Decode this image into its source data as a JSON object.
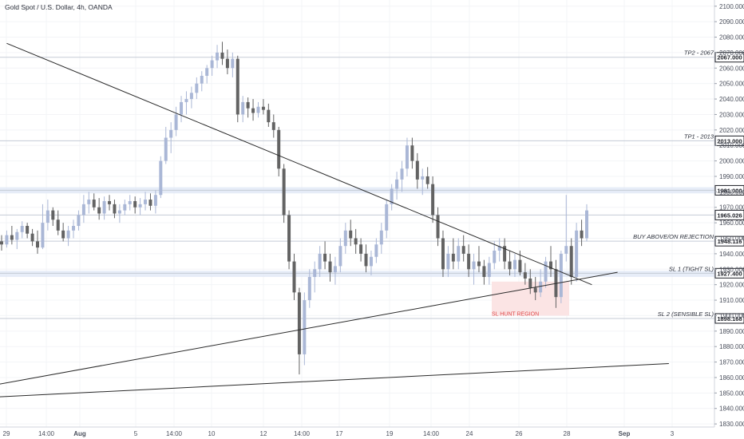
{
  "title": "Gold Spot / U.S. Dollar, 4h, OANDA",
  "colors": {
    "background": "#ffffff",
    "up_candle": "#aab7d6",
    "down_candle": "#636363",
    "trendline": "#2a2a2a",
    "level_line": "#c5cbd6",
    "zone_fill": "#dde6f5",
    "sl_zone_fill": "#fbe4e4",
    "sl_text": "#e05050",
    "badge_bg": "#ffffff",
    "badge_border": "#1e2027",
    "price_badge_bg": "#ffffff"
  },
  "chart_data": {
    "type": "candlestick",
    "title": "Gold Spot / U.S. Dollar, 4h, OANDA",
    "x_ticks": [
      "29",
      "14:00",
      "Aug",
      "5",
      "14:00",
      "10",
      "12",
      "14:00",
      "17",
      "19",
      "14:00",
      "24",
      "26",
      "28",
      "Sep",
      "3"
    ],
    "y_ticks": [
      1830,
      1840,
      1850,
      1860,
      1870,
      1880,
      1890,
      1900,
      1910,
      1920,
      1930,
      1940,
      1950,
      1960,
      1970,
      1980,
      1990,
      2000,
      2010,
      2020,
      2030,
      2040,
      2050,
      2060,
      2070,
      2080,
      2090,
      2100
    ],
    "ylim": [
      1828,
      2104
    ],
    "levels": [
      {
        "label": "TP2 - 2067",
        "price": 2067.0,
        "badge": "2067.000"
      },
      {
        "label": "TP1 - 2013",
        "price": 2013.0,
        "badge": "2013.000"
      },
      {
        "label": "",
        "price": 1981.0,
        "badge": "1981.000"
      },
      {
        "label": "",
        "price": 1965.026,
        "badge": "1965.026"
      },
      {
        "label": "BUY ABOVE/ON REJECTION",
        "price": 1948.116,
        "badge": "1948.116"
      },
      {
        "label": "SL 1 (TIGHT SL)",
        "price": 1927.4,
        "badge": "1927.400"
      },
      {
        "label": "SL 2 (SENSIBLE SL)",
        "price": 1898.168,
        "badge": "1898.168"
      }
    ],
    "zones": [
      {
        "price_from": 1979,
        "price_to": 1983
      },
      {
        "price_from": 1925,
        "price_to": 1929
      }
    ],
    "sl_zone": {
      "label": "SL HUNT REGION",
      "price_from": 1900,
      "price_to": 1922
    },
    "candles": [
      [
        1948,
        1952,
        1942,
        1946
      ],
      [
        1946,
        1955,
        1944,
        1952
      ],
      [
        1952,
        1958,
        1946,
        1949
      ],
      [
        1949,
        1956,
        1943,
        1954
      ],
      [
        1954,
        1961,
        1950,
        1958
      ],
      [
        1958,
        1960,
        1950,
        1953
      ],
      [
        1953,
        1956,
        1945,
        1948
      ],
      [
        1948,
        1955,
        1940,
        1944
      ],
      [
        1944,
        1972,
        1943,
        1960
      ],
      [
        1960,
        1975,
        1955,
        1968
      ],
      [
        1968,
        1970,
        1958,
        1962
      ],
      [
        1962,
        1968,
        1952,
        1955
      ],
      [
        1955,
        1960,
        1948,
        1950
      ],
      [
        1950,
        1958,
        1945,
        1955
      ],
      [
        1955,
        1962,
        1950,
        1958
      ],
      [
        1958,
        1968,
        1955,
        1965
      ],
      [
        1965,
        1978,
        1960,
        1972
      ],
      [
        1972,
        1980,
        1966,
        1975
      ],
      [
        1975,
        1979,
        1968,
        1970
      ],
      [
        1970,
        1976,
        1962,
        1966
      ],
      [
        1966,
        1977,
        1962,
        1974
      ],
      [
        1974,
        1978,
        1968,
        1972
      ],
      [
        1972,
        1975,
        1963,
        1966
      ],
      [
        1966,
        1972,
        1960,
        1968
      ],
      [
        1968,
        1975,
        1965,
        1972
      ],
      [
        1972,
        1978,
        1968,
        1974
      ],
      [
        1974,
        1977,
        1966,
        1970
      ],
      [
        1970,
        1976,
        1965,
        1972
      ],
      [
        1972,
        1980,
        1968,
        1975
      ],
      [
        1975,
        1979,
        1968,
        1971
      ],
      [
        1971,
        1981,
        1966,
        1978
      ],
      [
        1978,
        2003,
        1976,
        2000
      ],
      [
        2000,
        2022,
        1998,
        2015
      ],
      [
        2015,
        2025,
        2005,
        2020
      ],
      [
        2020,
        2035,
        2016,
        2030
      ],
      [
        2030,
        2042,
        2025,
        2038
      ],
      [
        2038,
        2045,
        2030,
        2040
      ],
      [
        2040,
        2048,
        2034,
        2044
      ],
      [
        2044,
        2054,
        2040,
        2050
      ],
      [
        2050,
        2058,
        2045,
        2055
      ],
      [
        2055,
        2062,
        2050,
        2060
      ],
      [
        2060,
        2068,
        2055,
        2065
      ],
      [
        2065,
        2075,
        2060,
        2070
      ],
      [
        2070,
        2077,
        2062,
        2066
      ],
      [
        2066,
        2072,
        2056,
        2060
      ],
      [
        2060,
        2070,
        2054,
        2066
      ],
      [
        2066,
        2068,
        2025,
        2030
      ],
      [
        2030,
        2042,
        2025,
        2038
      ],
      [
        2038,
        2041,
        2028,
        2034
      ],
      [
        2034,
        2040,
        2026,
        2031
      ],
      [
        2031,
        2038,
        2028,
        2035
      ],
      [
        2035,
        2040,
        2030,
        2033
      ],
      [
        2033,
        2037,
        2022,
        2025
      ],
      [
        2025,
        2030,
        2015,
        2020
      ],
      [
        2020,
        2022,
        1990,
        1995
      ],
      [
        1995,
        1998,
        1960,
        1965
      ],
      [
        1965,
        1968,
        1930,
        1935
      ],
      [
        1935,
        1940,
        1910,
        1915
      ],
      [
        1915,
        1918,
        1862,
        1875
      ],
      [
        1875,
        1915,
        1868,
        1910
      ],
      [
        1910,
        1930,
        1905,
        1925
      ],
      [
        1925,
        1935,
        1915,
        1930
      ],
      [
        1930,
        1945,
        1925,
        1940
      ],
      [
        1940,
        1948,
        1930,
        1935
      ],
      [
        1935,
        1940,
        1922,
        1928
      ],
      [
        1928,
        1938,
        1920,
        1932
      ],
      [
        1932,
        1950,
        1928,
        1945
      ],
      [
        1945,
        1960,
        1940,
        1955
      ],
      [
        1955,
        1962,
        1945,
        1950
      ],
      [
        1950,
        1956,
        1940,
        1946
      ],
      [
        1946,
        1950,
        1935,
        1940
      ],
      [
        1940,
        1946,
        1928,
        1932
      ],
      [
        1932,
        1942,
        1926,
        1938
      ],
      [
        1938,
        1950,
        1934,
        1946
      ],
      [
        1946,
        1960,
        1940,
        1955
      ],
      [
        1955,
        1975,
        1950,
        1972
      ],
      [
        1972,
        1985,
        1968,
        1982
      ],
      [
        1982,
        1993,
        1975,
        1988
      ],
      [
        1988,
        2000,
        1980,
        1995
      ],
      [
        1995,
        2015,
        1990,
        2010
      ],
      [
        2010,
        2015,
        1995,
        2000
      ],
      [
        2000,
        2005,
        1982,
        1988
      ],
      [
        1988,
        1995,
        1978,
        1990
      ],
      [
        1990,
        1996,
        1982,
        1985
      ],
      [
        1985,
        1990,
        1960,
        1965
      ],
      [
        1965,
        1970,
        1945,
        1950
      ],
      [
        1950,
        1955,
        1925,
        1930
      ],
      [
        1930,
        1945,
        1925,
        1940
      ],
      [
        1940,
        1950,
        1930,
        1935
      ],
      [
        1935,
        1950,
        1930,
        1945
      ],
      [
        1945,
        1952,
        1935,
        1940
      ],
      [
        1940,
        1946,
        1925,
        1930
      ],
      [
        1930,
        1940,
        1920,
        1935
      ],
      [
        1935,
        1945,
        1928,
        1932
      ],
      [
        1932,
        1936,
        1920,
        1925
      ],
      [
        1925,
        1938,
        1920,
        1934
      ],
      [
        1934,
        1948,
        1930,
        1942
      ],
      [
        1942,
        1950,
        1935,
        1945
      ],
      [
        1945,
        1950,
        1930,
        1935
      ],
      [
        1935,
        1942,
        1926,
        1930
      ],
      [
        1930,
        1940,
        1925,
        1936
      ],
      [
        1936,
        1942,
        1926,
        1928
      ],
      [
        1928,
        1934,
        1920,
        1924
      ],
      [
        1924,
        1930,
        1914,
        1918
      ],
      [
        1918,
        1925,
        1910,
        1915
      ],
      [
        1915,
        1930,
        1912,
        1922
      ],
      [
        1922,
        1938,
        1918,
        1935
      ],
      [
        1935,
        1945,
        1925,
        1930
      ],
      [
        1930,
        1936,
        1905,
        1912
      ],
      [
        1912,
        1942,
        1908,
        1940
      ],
      [
        1940,
        1978,
        1935,
        1945
      ],
      [
        1945,
        1950,
        1920,
        1925
      ],
      [
        1925,
        1960,
        1922,
        1955
      ],
      [
        1955,
        1962,
        1945,
        1950
      ],
      [
        1950,
        1972,
        1948,
        1968
      ]
    ],
    "trendlines": [
      {
        "from": [
          1,
          2076
        ],
        "to": [
          115,
          1920
        ]
      },
      {
        "from": [
          -30,
          1838
        ],
        "to": [
          120,
          1928
        ]
      },
      {
        "from": [
          -40,
          1841
        ],
        "to": [
          130,
          1869
        ]
      }
    ]
  }
}
